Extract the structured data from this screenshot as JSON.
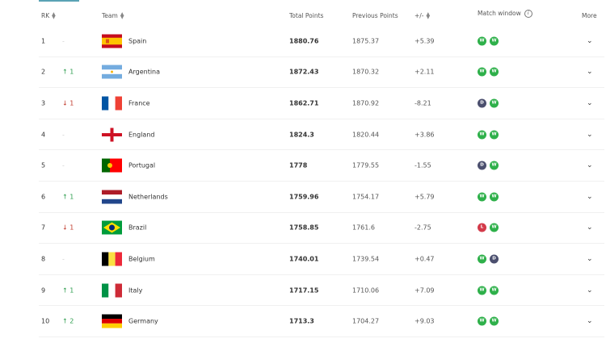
{
  "header": {
    "rk": "RK",
    "team": "Team",
    "total": "Total Points",
    "previous": "Previous Points",
    "diff": "+/-",
    "match_window": "Match window",
    "more": "More"
  },
  "rows": [
    {
      "rank": "1",
      "move": "-",
      "dir": "same",
      "team": "Spain",
      "flag": "spain",
      "total": "1880.76",
      "previous": "1875.37",
      "diff": "+5.39",
      "results": [
        "W",
        "W"
      ]
    },
    {
      "rank": "2",
      "move": "↑ 1",
      "dir": "up",
      "team": "Argentina",
      "flag": "argentina",
      "total": "1872.43",
      "previous": "1870.32",
      "diff": "+2.11",
      "results": [
        "W",
        "W"
      ]
    },
    {
      "rank": "3",
      "move": "↓ 1",
      "dir": "down",
      "team": "France",
      "flag": "france",
      "total": "1862.71",
      "previous": "1870.92",
      "diff": "-8.21",
      "results": [
        "D",
        "W"
      ]
    },
    {
      "rank": "4",
      "move": "-",
      "dir": "same",
      "team": "England",
      "flag": "england",
      "total": "1824.3",
      "previous": "1820.44",
      "diff": "+3.86",
      "results": [
        "W",
        "W"
      ]
    },
    {
      "rank": "5",
      "move": "-",
      "dir": "same",
      "team": "Portugal",
      "flag": "portugal",
      "total": "1778",
      "previous": "1779.55",
      "diff": "-1.55",
      "results": [
        "D",
        "W"
      ]
    },
    {
      "rank": "6",
      "move": "↑ 1",
      "dir": "up",
      "team": "Netherlands",
      "flag": "netherlands",
      "total": "1759.96",
      "previous": "1754.17",
      "diff": "+5.79",
      "results": [
        "W",
        "W"
      ]
    },
    {
      "rank": "7",
      "move": "↓ 1",
      "dir": "down",
      "team": "Brazil",
      "flag": "brazil",
      "total": "1758.85",
      "previous": "1761.6",
      "diff": "-2.75",
      "results": [
        "L",
        "W"
      ]
    },
    {
      "rank": "8",
      "move": "-",
      "dir": "same",
      "team": "Belgium",
      "flag": "belgium",
      "total": "1740.01",
      "previous": "1739.54",
      "diff": "+0.47",
      "results": [
        "W",
        "D"
      ]
    },
    {
      "rank": "9",
      "move": "↑ 1",
      "dir": "up",
      "team": "Italy",
      "flag": "italy",
      "total": "1717.15",
      "previous": "1710.06",
      "diff": "+7.09",
      "results": [
        "W",
        "W"
      ]
    },
    {
      "rank": "10",
      "move": "↑ 2",
      "dir": "up",
      "team": "Germany",
      "flag": "germany",
      "total": "1713.3",
      "previous": "1704.27",
      "diff": "+9.03",
      "results": [
        "W",
        "W"
      ]
    }
  ]
}
